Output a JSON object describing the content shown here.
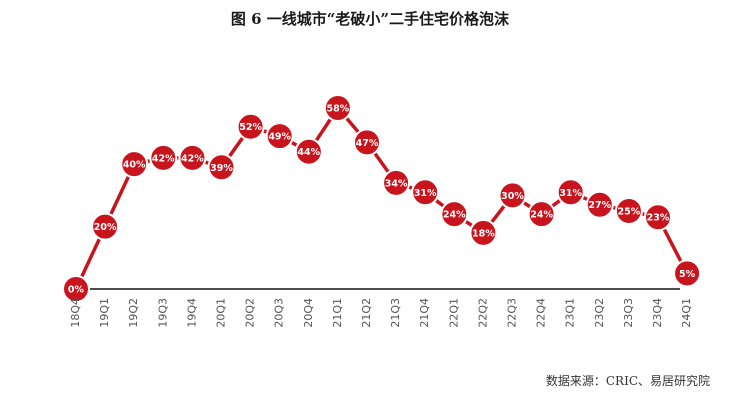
{
  "title": "图 6   一线城市“老破小”二手住宅价格泡沫",
  "source": "数据来源：CRIC、易居研究院",
  "colors": {
    "line": "#c8151d",
    "marker_fill": "#c8151d",
    "marker_stroke": "#ffffff",
    "axis": "#4d4d4d",
    "label": "#ffffff",
    "tick": "#555555"
  },
  "chart_data": {
    "type": "line",
    "title": "图 6   一线城市“老破小”二手住宅价格泡沫",
    "xlabel": "",
    "ylabel": "",
    "ylim": [
      0,
      60
    ],
    "grid": false,
    "legend": "none",
    "categories": [
      "18Q4",
      "19Q1",
      "19Q2",
      "19Q3",
      "19Q4",
      "20Q1",
      "20Q2",
      "20Q3",
      "20Q4",
      "21Q1",
      "21Q2",
      "21Q3",
      "21Q4",
      "22Q1",
      "22Q2",
      "22Q3",
      "22Q4",
      "23Q1",
      "23Q2",
      "23Q3",
      "23Q4",
      "24Q1"
    ],
    "values": [
      0,
      20,
      40,
      42,
      42,
      39,
      52,
      49,
      44,
      58,
      47,
      34,
      31,
      24,
      18,
      30,
      24,
      31,
      27,
      25,
      23,
      5
    ],
    "data_labels": [
      "0%",
      "20%",
      "40%",
      "42%",
      "42%",
      "39%",
      "52%",
      "49%",
      "44%",
      "58%",
      "47%",
      "34%",
      "31%",
      "24%",
      "18%",
      "30%",
      "24%",
      "31%",
      "27%",
      "25%",
      "23%",
      "5%"
    ]
  }
}
